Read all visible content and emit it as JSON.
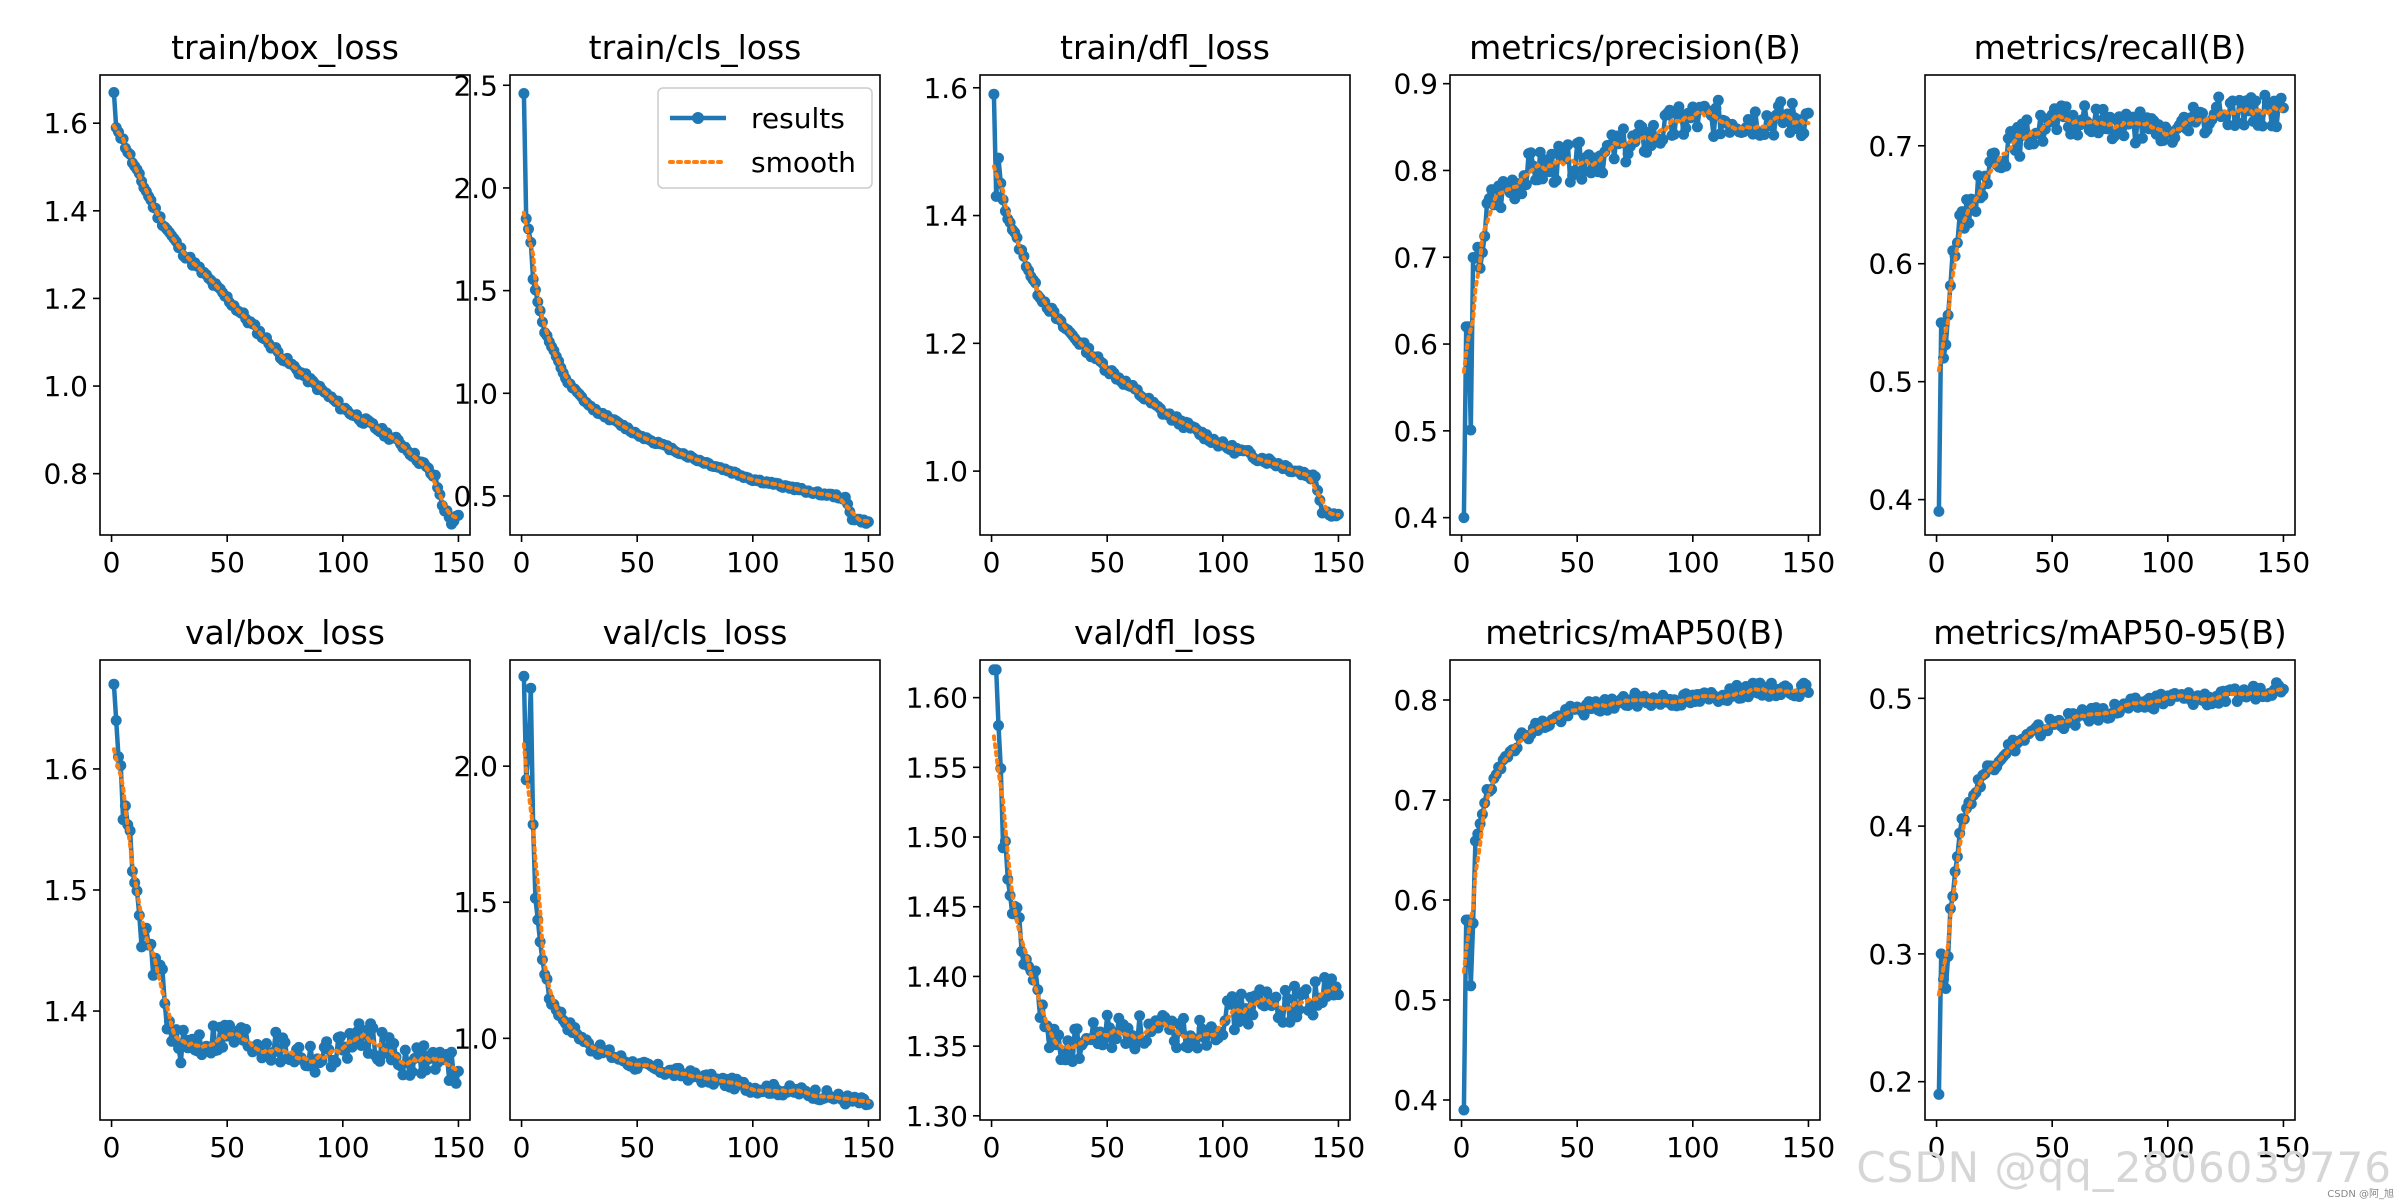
{
  "colors": {
    "results": "#1f77b4",
    "smooth": "#ff7f0e"
  },
  "legend": {
    "results_label": "results",
    "smooth_label": "smooth"
  },
  "watermark": {
    "main": "CSDN @qq_2806039776",
    "small": "CSDN @阿_旭"
  },
  "chart_data": [
    {
      "type": "line",
      "title": "train/box_loss",
      "xlim": [
        -5,
        155
      ],
      "xticks": [
        0,
        50,
        100,
        150
      ],
      "ylim": [
        0.66,
        1.71
      ],
      "yticks": [
        0.8,
        1.0,
        1.2,
        1.4,
        1.6
      ],
      "ytick_labels": [
        "0.8",
        "1.0",
        "1.2",
        "1.4",
        "1.6"
      ],
      "anchors": [
        [
          1,
          1.67
        ],
        [
          2,
          1.59
        ],
        [
          5,
          1.56
        ],
        [
          10,
          1.5
        ],
        [
          20,
          1.39
        ],
        [
          30,
          1.31
        ],
        [
          50,
          1.2
        ],
        [
          75,
          1.06
        ],
        [
          100,
          0.95
        ],
        [
          125,
          0.87
        ],
        [
          135,
          0.82
        ],
        [
          140,
          0.79
        ],
        [
          143,
          0.73
        ],
        [
          147,
          0.69
        ],
        [
          150,
          0.7
        ]
      ],
      "noise": 0.008,
      "seed": 11,
      "legend": false
    },
    {
      "type": "line",
      "title": "train/cls_loss",
      "xlim": [
        -5,
        155
      ],
      "xticks": [
        0,
        50,
        100,
        150
      ],
      "ylim": [
        0.31,
        2.55
      ],
      "yticks": [
        0.5,
        1.0,
        1.5,
        2.0,
        2.5
      ],
      "ytick_labels": [
        "0.5",
        "1.0",
        "1.5",
        "2.0",
        "2.5"
      ],
      "anchors": [
        [
          1,
          2.46
        ],
        [
          2,
          1.85
        ],
        [
          3,
          1.8
        ],
        [
          4,
          1.74
        ],
        [
          5,
          1.55
        ],
        [
          10,
          1.3
        ],
        [
          20,
          1.05
        ],
        [
          30,
          0.93
        ],
        [
          50,
          0.8
        ],
        [
          75,
          0.68
        ],
        [
          100,
          0.58
        ],
        [
          125,
          0.52
        ],
        [
          140,
          0.49
        ],
        [
          143,
          0.39
        ],
        [
          150,
          0.37
        ]
      ],
      "noise": 0.008,
      "seed": 12,
      "legend": true
    },
    {
      "type": "line",
      "title": "train/dfl_loss",
      "xlim": [
        -5,
        155
      ],
      "xticks": [
        0,
        50,
        100,
        150
      ],
      "ylim": [
        0.9,
        1.62
      ],
      "yticks": [
        1.0,
        1.2,
        1.4,
        1.6
      ],
      "ytick_labels": [
        "1.0",
        "1.2",
        "1.4",
        "1.6"
      ],
      "anchors": [
        [
          1,
          1.59
        ],
        [
          2,
          1.43
        ],
        [
          3,
          1.49
        ],
        [
          5,
          1.42
        ],
        [
          10,
          1.37
        ],
        [
          20,
          1.28
        ],
        [
          30,
          1.23
        ],
        [
          50,
          1.16
        ],
        [
          75,
          1.09
        ],
        [
          100,
          1.04
        ],
        [
          125,
          1.01
        ],
        [
          140,
          0.99
        ],
        [
          143,
          0.94
        ],
        [
          150,
          0.93
        ]
      ],
      "noise": 0.006,
      "seed": 13,
      "legend": false
    },
    {
      "type": "line",
      "title": "metrics/precision(B)",
      "xlim": [
        -5,
        155
      ],
      "xticks": [
        0,
        50,
        100,
        150
      ],
      "ylim": [
        0.38,
        0.91
      ],
      "yticks": [
        0.4,
        0.5,
        0.6,
        0.7,
        0.8,
        0.9
      ],
      "ytick_labels": [
        "0.4",
        "0.5",
        "0.6",
        "0.7",
        "0.8",
        "0.9"
      ],
      "anchors": [
        [
          1,
          0.4
        ],
        [
          2,
          0.62
        ],
        [
          3,
          0.62
        ],
        [
          4,
          0.52
        ],
        [
          5,
          0.68
        ],
        [
          8,
          0.7
        ],
        [
          12,
          0.76
        ],
        [
          20,
          0.78
        ],
        [
          30,
          0.8
        ],
        [
          50,
          0.81
        ],
        [
          75,
          0.83
        ],
        [
          100,
          0.86
        ],
        [
          125,
          0.86
        ],
        [
          150,
          0.86
        ]
      ],
      "noise": 0.022,
      "seed": 14,
      "legend": false
    },
    {
      "type": "line",
      "title": "metrics/recall(B)",
      "xlim": [
        -5,
        155
      ],
      "xticks": [
        0,
        50,
        100,
        150
      ],
      "ylim": [
        0.37,
        0.76
      ],
      "yticks": [
        0.4,
        0.5,
        0.6,
        0.7
      ],
      "ytick_labels": [
        "0.4",
        "0.5",
        "0.6",
        "0.7"
      ],
      "anchors": [
        [
          1,
          0.39
        ],
        [
          2,
          0.55
        ],
        [
          3,
          0.52
        ],
        [
          5,
          0.57
        ],
        [
          8,
          0.62
        ],
        [
          15,
          0.65
        ],
        [
          25,
          0.69
        ],
        [
          40,
          0.71
        ],
        [
          50,
          0.72
        ],
        [
          75,
          0.72
        ],
        [
          100,
          0.71
        ],
        [
          125,
          0.73
        ],
        [
          150,
          0.73
        ]
      ],
      "noise": 0.014,
      "seed": 15,
      "legend": false
    },
    {
      "type": "line",
      "title": "val/box_loss",
      "xlim": [
        -5,
        155
      ],
      "xticks": [
        0,
        50,
        100,
        150
      ],
      "ylim": [
        1.31,
        1.69
      ],
      "yticks": [
        1.4,
        1.5,
        1.6
      ],
      "ytick_labels": [
        "1.4",
        "1.5",
        "1.6"
      ],
      "anchors": [
        [
          1,
          1.67
        ],
        [
          2,
          1.64
        ],
        [
          3,
          1.61
        ],
        [
          5,
          1.57
        ],
        [
          8,
          1.54
        ],
        [
          12,
          1.47
        ],
        [
          18,
          1.44
        ],
        [
          22,
          1.43
        ],
        [
          25,
          1.38
        ],
        [
          30,
          1.37
        ],
        [
          50,
          1.38
        ],
        [
          70,
          1.37
        ],
        [
          90,
          1.36
        ],
        [
          110,
          1.38
        ],
        [
          125,
          1.36
        ],
        [
          140,
          1.36
        ],
        [
          150,
          1.35
        ]
      ],
      "noise": 0.014,
      "seed": 16,
      "legend": false
    },
    {
      "type": "line",
      "title": "val/cls_loss",
      "xlim": [
        -5,
        155
      ],
      "xticks": [
        0,
        50,
        100,
        150
      ],
      "ylim": [
        0.7,
        2.39
      ],
      "yticks": [
        1.0,
        1.5,
        2.0
      ],
      "ytick_labels": [
        "1.0",
        "1.5",
        "2.0"
      ],
      "anchors": [
        [
          1,
          2.33
        ],
        [
          2,
          1.95
        ],
        [
          3,
          2.05
        ],
        [
          4,
          2.27
        ],
        [
          5,
          1.8
        ],
        [
          6,
          1.52
        ],
        [
          8,
          1.35
        ],
        [
          12,
          1.15
        ],
        [
          20,
          1.05
        ],
        [
          30,
          0.97
        ],
        [
          50,
          0.9
        ],
        [
          75,
          0.86
        ],
        [
          100,
          0.82
        ],
        [
          125,
          0.8
        ],
        [
          150,
          0.76
        ]
      ],
      "noise": 0.02,
      "seed": 17,
      "legend": false
    },
    {
      "type": "line",
      "title": "val/dfl_loss",
      "xlim": [
        -5,
        155
      ],
      "xticks": [
        0,
        50,
        100,
        150
      ],
      "ylim": [
        1.297,
        1.627
      ],
      "yticks": [
        1.3,
        1.35,
        1.4,
        1.45,
        1.5,
        1.55,
        1.6
      ],
      "ytick_labels": [
        "1.30",
        "1.35",
        "1.40",
        "1.45",
        "1.50",
        "1.55",
        "1.60"
      ],
      "anchors": [
        [
          1,
          1.62
        ],
        [
          2,
          1.62
        ],
        [
          3,
          1.58
        ],
        [
          5,
          1.5
        ],
        [
          8,
          1.46
        ],
        [
          12,
          1.43
        ],
        [
          15,
          1.41
        ],
        [
          20,
          1.39
        ],
        [
          25,
          1.35
        ],
        [
          35,
          1.35
        ],
        [
          50,
          1.36
        ],
        [
          75,
          1.36
        ],
        [
          90,
          1.36
        ],
        [
          100,
          1.37
        ],
        [
          115,
          1.38
        ],
        [
          130,
          1.38
        ],
        [
          150,
          1.39
        ]
      ],
      "noise": 0.013,
      "seed": 18,
      "legend": false
    },
    {
      "type": "line",
      "title": "metrics/mAP50(B)",
      "xlim": [
        -5,
        155
      ],
      "xticks": [
        0,
        50,
        100,
        150
      ],
      "ylim": [
        0.38,
        0.84
      ],
      "yticks": [
        0.4,
        0.5,
        0.6,
        0.7,
        0.8
      ],
      "ytick_labels": [
        "0.4",
        "0.5",
        "0.6",
        "0.7",
        "0.8"
      ],
      "anchors": [
        [
          1,
          0.39
        ],
        [
          2,
          0.58
        ],
        [
          3,
          0.58
        ],
        [
          4,
          0.51
        ],
        [
          5,
          0.58
        ],
        [
          6,
          0.66
        ],
        [
          10,
          0.7
        ],
        [
          15,
          0.72
        ],
        [
          20,
          0.75
        ],
        [
          30,
          0.77
        ],
        [
          50,
          0.79
        ],
        [
          75,
          0.8
        ],
        [
          100,
          0.8
        ],
        [
          125,
          0.81
        ],
        [
          150,
          0.81
        ]
      ],
      "noise": 0.007,
      "seed": 19,
      "legend": false
    },
    {
      "type": "line",
      "title": "metrics/mAP50-95(B)",
      "xlim": [
        -5,
        155
      ],
      "xticks": [
        0,
        50,
        100,
        150
      ],
      "ylim": [
        0.17,
        0.53
      ],
      "yticks": [
        0.2,
        0.3,
        0.4,
        0.5
      ],
      "ytick_labels": [
        "0.2",
        "0.3",
        "0.4",
        "0.5"
      ],
      "anchors": [
        [
          1,
          0.19
        ],
        [
          2,
          0.3
        ],
        [
          3,
          0.28
        ],
        [
          4,
          0.27
        ],
        [
          6,
          0.33
        ],
        [
          8,
          0.37
        ],
        [
          12,
          0.41
        ],
        [
          20,
          0.44
        ],
        [
          30,
          0.46
        ],
        [
          50,
          0.48
        ],
        [
          75,
          0.49
        ],
        [
          100,
          0.5
        ],
        [
          125,
          0.5
        ],
        [
          150,
          0.51
        ]
      ],
      "noise": 0.006,
      "seed": 20,
      "legend": false
    }
  ]
}
